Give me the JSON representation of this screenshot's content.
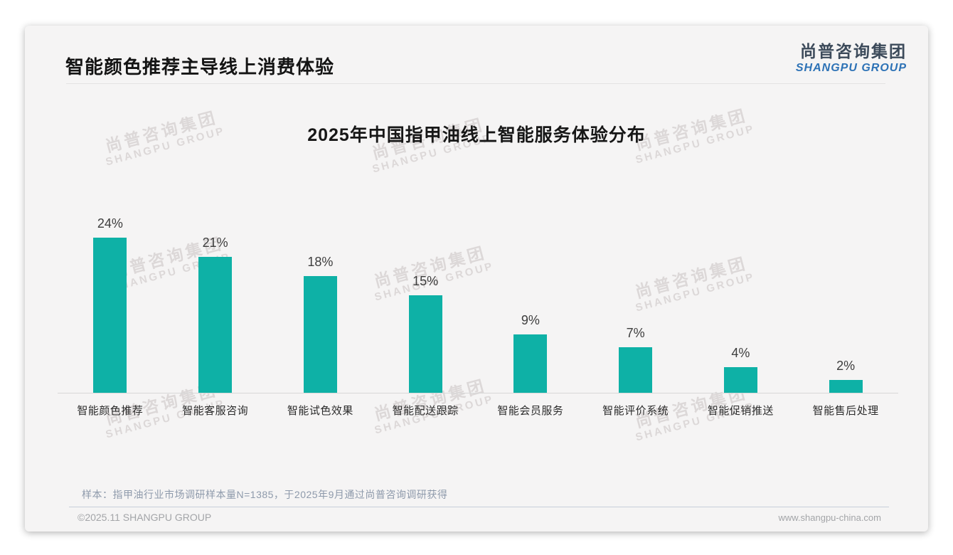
{
  "page": {
    "header": {
      "title": "智能颜色推荐主导线上消费体验"
    },
    "logo": {
      "cn": "尚普咨询集团",
      "en": "SHANGPU GROUP"
    },
    "watermark": {
      "cn": "尚普咨询集团",
      "en": "SHANGPU GROUP"
    },
    "footer": {
      "note": "样本：指甲油行业市场调研样本量N=1385，于2025年9月通过尚普咨询调研获得",
      "copyright": "©2025.11 SHANGPU GROUP",
      "website": "www.shangpu-china.com"
    }
  },
  "colors": {
    "bar_teal": "#0eb1a6",
    "logo_blue": "#2d72b6",
    "logo_dark": "#3c4a5a"
  },
  "chart_data": {
    "type": "bar",
    "title": "2025年中国指甲油线上智能服务体验分布",
    "categories": [
      "智能颜色推荐",
      "智能客服咨询",
      "智能试色效果",
      "智能配送跟踪",
      "智能会员服务",
      "智能评价系统",
      "智能促销推送",
      "智能售后处理"
    ],
    "values": [
      24,
      21,
      18,
      15,
      9,
      7,
      4,
      2
    ],
    "value_labels": [
      "24%",
      "21%",
      "18%",
      "15%",
      "9%",
      "7%",
      "4%",
      "2%"
    ],
    "unit": "%",
    "xlabel": "",
    "ylabel": "",
    "ylim": [
      0,
      26
    ],
    "grid": false,
    "legend": "none",
    "bar_color": "#0eb1a6"
  }
}
